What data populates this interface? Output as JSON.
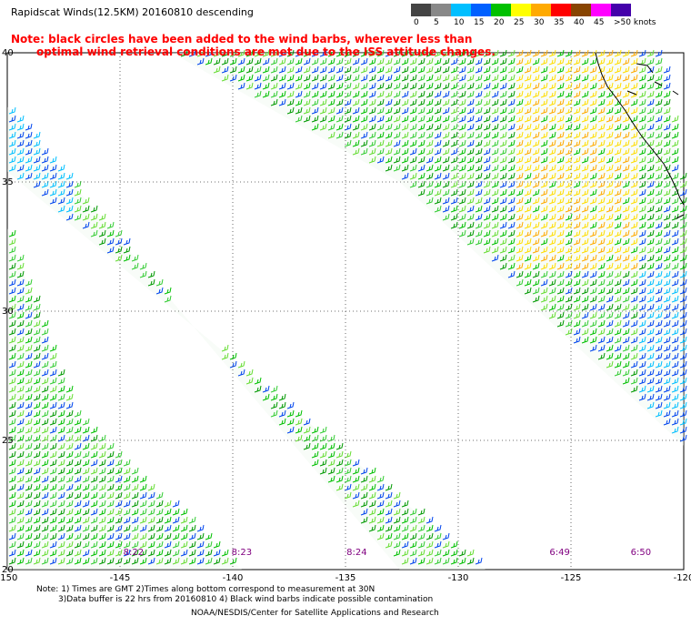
{
  "header": {
    "title": "Rapidscat Winds(12.5KM) 20160810 descending",
    "note_line1": "Note: black circles have been added to the wind barbs, wherever less than",
    "note_line2": "optimal wind retrieval conditions are met due to the ISS attitude changes."
  },
  "color_scale": {
    "labels": [
      "0",
      "5",
      "10",
      "15",
      "20",
      "25",
      "30",
      "35",
      "40",
      "45",
      ">50 knots"
    ],
    "colors": [
      "#444444",
      "#888888",
      "#00bfff",
      "#0060ff",
      "#00c000",
      "#ffff00",
      "#ffaa00",
      "#ff0000",
      "#884400",
      "#ff00ff",
      "#4400aa"
    ]
  },
  "chart_data": {
    "type": "map",
    "lon_range": [
      -150,
      -120
    ],
    "lat_range": [
      20,
      40
    ],
    "lon_labels": [
      "-150",
      "-145",
      "-140",
      "-135",
      "-130",
      "-125",
      "-120"
    ],
    "lat_labels": [
      "40",
      "35",
      "30",
      "25",
      "20"
    ],
    "time_labels": [
      {
        "text": "8:22",
        "lon": -144.4
      },
      {
        "text": "8:23",
        "lon": -139.6
      },
      {
        "text": "8:24",
        "lon": -134.5
      },
      {
        "text": "6:49",
        "lon": -125.5
      },
      {
        "text": "6:50",
        "lon": -121.9
      }
    ]
  },
  "footer": {
    "line1": "Note: 1) Times are GMT 2)Times along bottom correspond to measurement at 30N",
    "line2": "3)Data buffer is 22 hrs from 20160810 4) Black wind barbs indicate possible contamination",
    "credit": "NOAA/NESDIS/Center for Satellite Applications and Research"
  }
}
